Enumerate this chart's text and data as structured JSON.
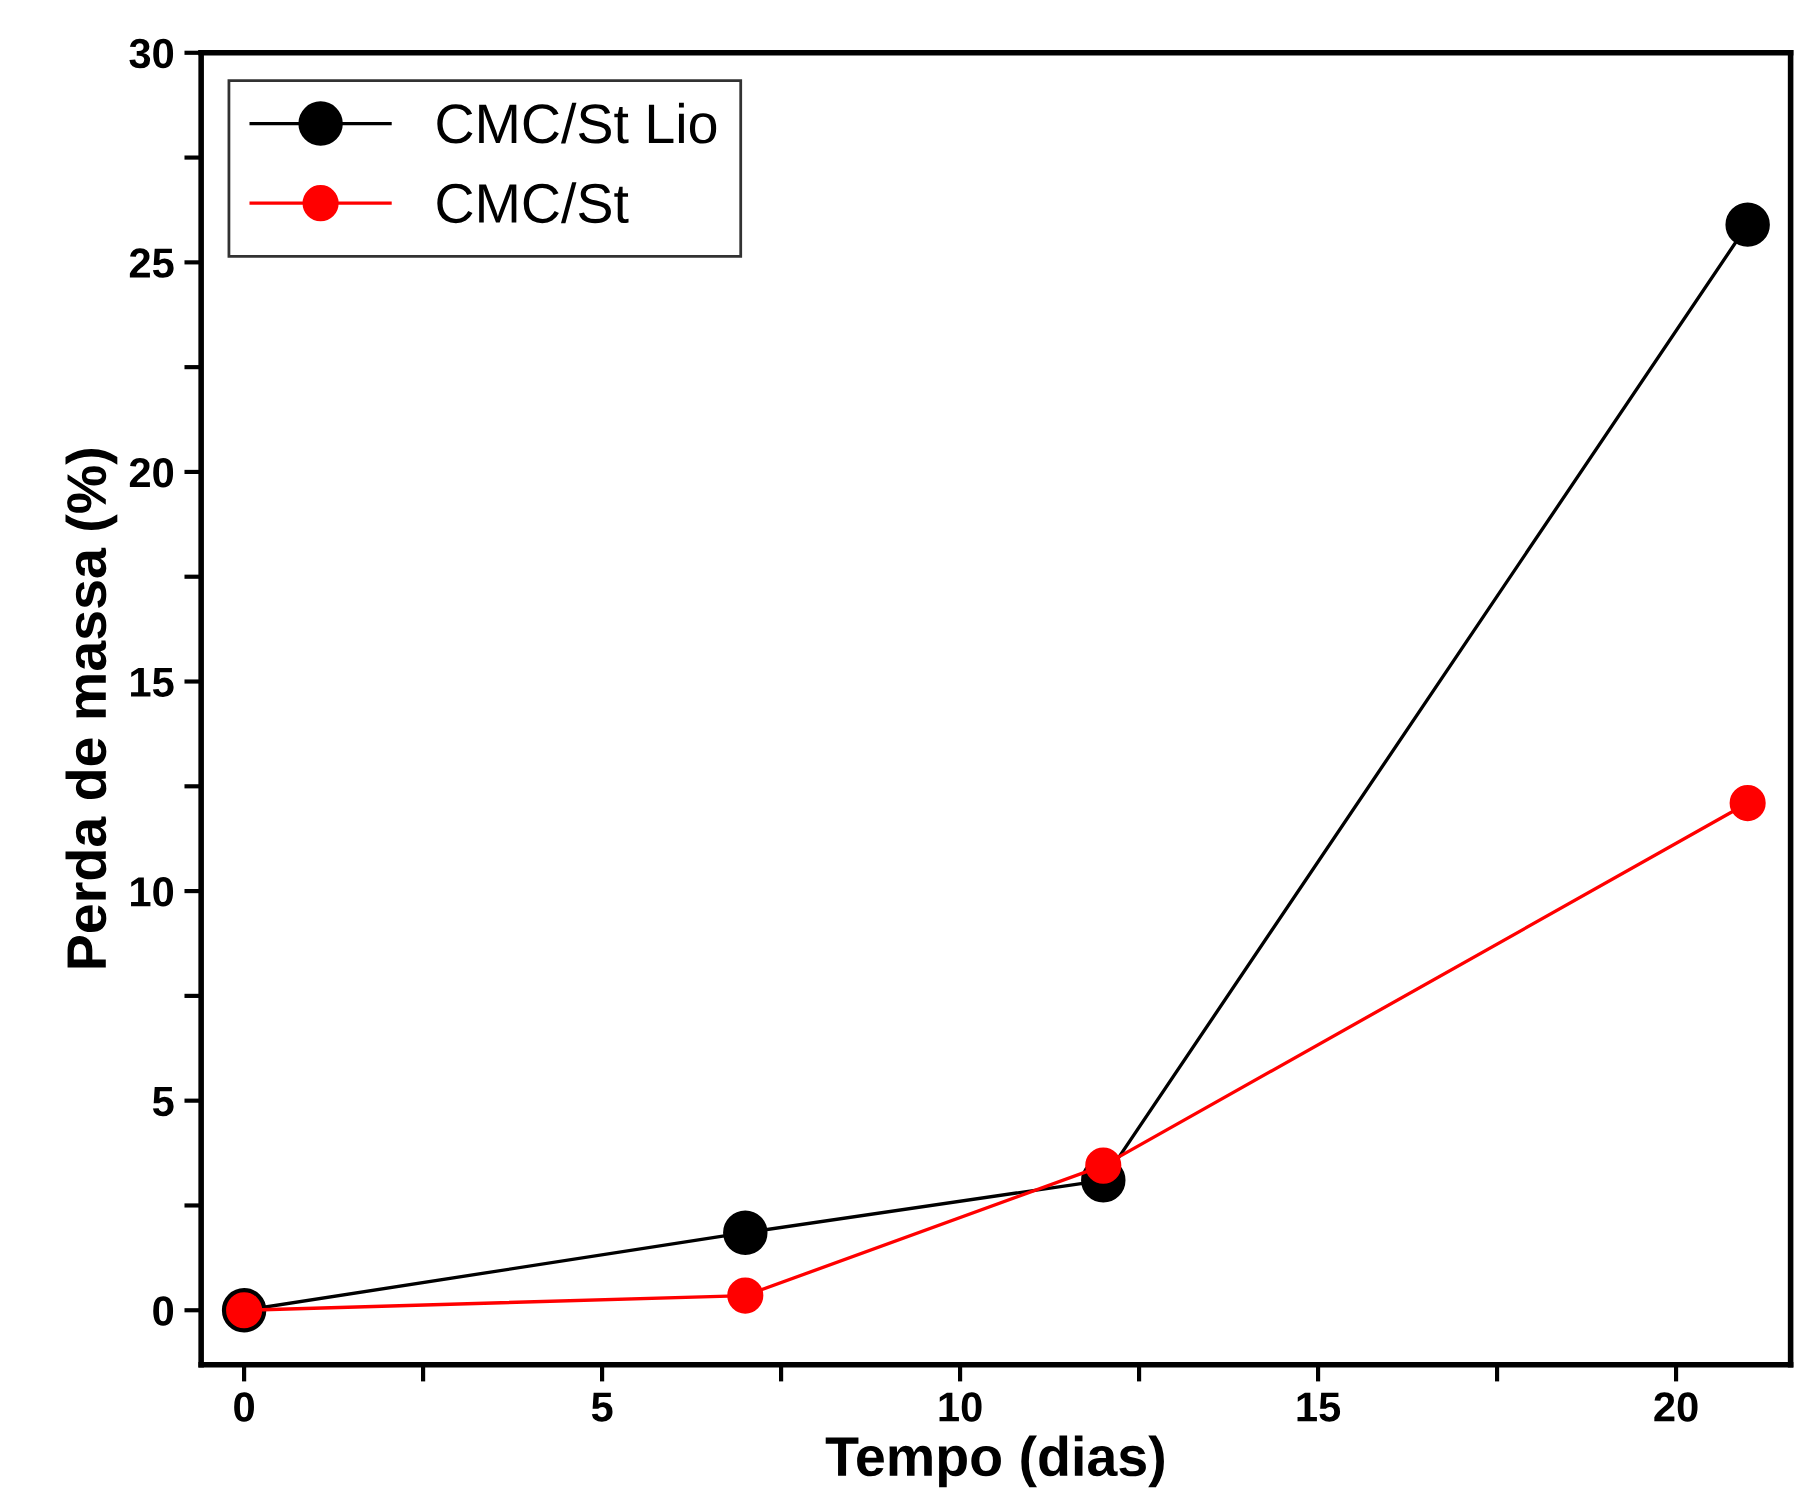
{
  "chart_data": {
    "type": "line",
    "xlabel": "Tempo (dias)",
    "ylabel": "Perda de massa (%)",
    "x": [
      0,
      7,
      12,
      21
    ],
    "series": [
      {
        "name": "CMC/St Lio",
        "color": "#000000",
        "values": [
          0,
          1.85,
          3.1,
          25.9
        ]
      },
      {
        "name": "CMC/St",
        "color": "#ff0000",
        "values": [
          0,
          0.35,
          3.45,
          12.1
        ]
      }
    ],
    "xlim": [
      -0.6,
      21.6
    ],
    "ylim": [
      -1.3,
      30
    ],
    "xticks": [
      0,
      {
        "value": 2.5,
        "label": null
      },
      5,
      {
        "value": 7.5,
        "label": null
      },
      10,
      {
        "value": 12.5,
        "label": null
      },
      15,
      {
        "value": 17.5,
        "label": null
      },
      20
    ],
    "yticks": [
      0,
      {
        "value": 2.5,
        "label": null
      },
      5,
      {
        "value": 7.5,
        "label": null
      },
      10,
      {
        "value": 12.5,
        "label": null
      },
      15,
      {
        "value": 17.5,
        "label": null
      },
      20,
      {
        "value": 22.5,
        "label": null
      },
      25,
      {
        "value": 27.5,
        "label": null
      },
      30
    ],
    "grid": false,
    "legend": "top left",
    "marker": "circle",
    "line_style": "solid"
  }
}
